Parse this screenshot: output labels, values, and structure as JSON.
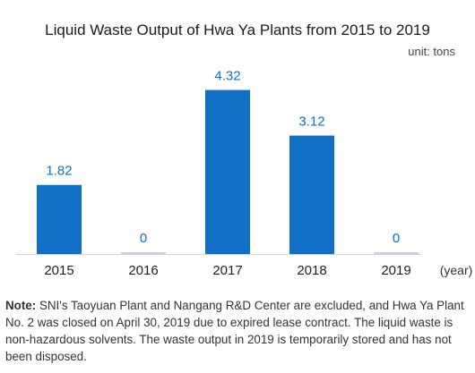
{
  "chart_data": {
    "type": "bar",
    "title": "Liquid Waste Output of Hwa Ya Plants from 2015 to 2019",
    "unit": "unit: tons",
    "xlabel": "(year)",
    "ylabel": "",
    "categories": [
      "2015",
      "2016",
      "2017",
      "2018",
      "2019"
    ],
    "values": [
      1.82,
      0,
      4.32,
      3.12,
      0
    ],
    "data_labels": [
      "1.82",
      "0",
      "4.32",
      "3.12",
      "0"
    ],
    "ylim": [
      0,
      4.9
    ],
    "grid": false,
    "legend": "none",
    "colors": {
      "bar": "#1170c5",
      "zero_bar": "#c8d2dc",
      "label": "#1170c5"
    }
  },
  "note": {
    "label": "Note:",
    "text": " SNI's Taoyuan Plant and Nangang R&D Center are excluded, and Hwa Ya Plant No. 2 was closed on April 30, 2019 due to expired lease contract. The liquid waste is non-hazardous solvents. The waste output in 2019 is temporarily stored and has not been disposed."
  }
}
